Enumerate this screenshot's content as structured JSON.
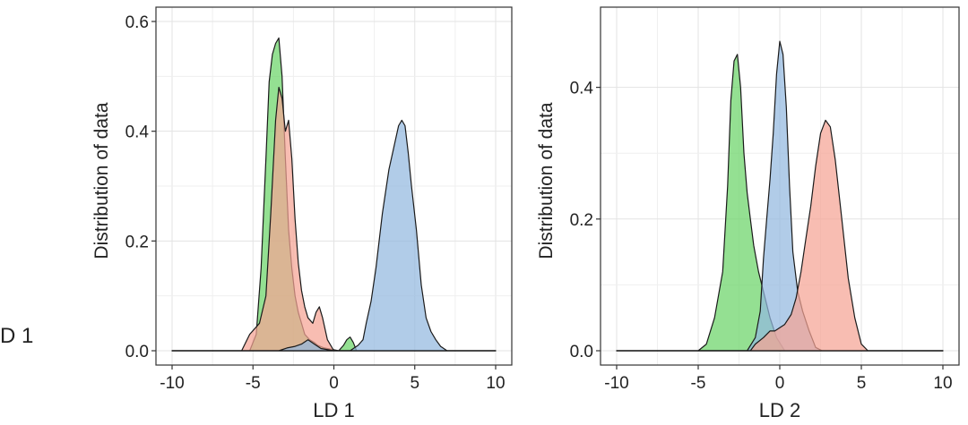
{
  "cut_label": "D 1",
  "colors": {
    "green": "#6bd468",
    "red": "#f5a494",
    "blue": "#93b9df",
    "outline": "#1a1a1a",
    "grid": "#e3e3e3"
  },
  "chart_data": [
    {
      "type": "area",
      "xlabel": "LD 1",
      "ylabel": "Distribution of data",
      "xlim": [
        -10,
        10
      ],
      "ylim": [
        0,
        0.6
      ],
      "xticks": [
        -10,
        -5,
        0,
        5,
        10
      ],
      "yticks": [
        0.0,
        0.2,
        0.4,
        0.6
      ],
      "xtick_labels": [
        "-10",
        "-5",
        "0",
        "5",
        "10"
      ],
      "ytick_labels": [
        "0.0",
        "0.2",
        "0.4",
        "0.6"
      ],
      "grid": true,
      "series": [
        {
          "color": "#6bd468",
          "x": [
            -10,
            -5.2,
            -4.8,
            -4.5,
            -4.2,
            -4.0,
            -3.8,
            -3.6,
            -3.4,
            -3.2,
            -3.0,
            -2.8,
            -2.6,
            -2.4,
            -2.2,
            -2.0,
            -1.8,
            -1.5,
            -1.2,
            -1.0,
            -0.6,
            0.3,
            0.6,
            0.8,
            1.0,
            1.2,
            1.4,
            10
          ],
          "y": [
            0,
            0,
            0.03,
            0.15,
            0.35,
            0.49,
            0.54,
            0.56,
            0.57,
            0.5,
            0.35,
            0.22,
            0.15,
            0.1,
            0.07,
            0.05,
            0.03,
            0.02,
            0.015,
            0.01,
            0.005,
            0,
            0.01,
            0.02,
            0.025,
            0.015,
            0,
            0
          ]
        },
        {
          "color": "#f5a494",
          "x": [
            -10,
            -5.7,
            -5.2,
            -4.6,
            -4.2,
            -3.9,
            -3.6,
            -3.4,
            -3.2,
            -3.0,
            -2.8,
            -2.6,
            -2.4,
            -2.2,
            -2.0,
            -1.8,
            -1.6,
            -1.3,
            -1.1,
            -0.9,
            -0.7,
            -0.4,
            0.0,
            10
          ],
          "y": [
            0,
            0,
            0.03,
            0.05,
            0.1,
            0.25,
            0.42,
            0.48,
            0.46,
            0.4,
            0.42,
            0.35,
            0.24,
            0.16,
            0.11,
            0.08,
            0.06,
            0.05,
            0.07,
            0.08,
            0.06,
            0.02,
            0,
            0
          ]
        },
        {
          "color": "#93b9df",
          "x": [
            -10,
            -3.4,
            -2.9,
            -2.4,
            -2.0,
            -1.6,
            -1.2,
            -0.8,
            0.0,
            1.0,
            1.5,
            1.8,
            2.0,
            2.3,
            2.6,
            3.0,
            3.4,
            3.7,
            4.0,
            4.2,
            4.4,
            4.6,
            4.8,
            5.1,
            5.4,
            5.7,
            6.0,
            6.3,
            6.6,
            7.0,
            10
          ],
          "y": [
            0,
            0,
            0.005,
            0.008,
            0.012,
            0.02,
            0.012,
            0.004,
            0,
            0,
            0.01,
            0.02,
            0.05,
            0.09,
            0.15,
            0.25,
            0.33,
            0.37,
            0.41,
            0.42,
            0.41,
            0.36,
            0.3,
            0.22,
            0.12,
            0.06,
            0.035,
            0.02,
            0.008,
            0,
            0
          ]
        }
      ]
    },
    {
      "type": "area",
      "xlabel": "LD 2",
      "ylabel": "Distribution of data",
      "xlim": [
        -10,
        10
      ],
      "ylim": [
        0,
        0.5
      ],
      "xticks": [
        -10,
        -5,
        0,
        5,
        10
      ],
      "yticks": [
        0.0,
        0.2,
        0.4
      ],
      "xtick_labels": [
        "-10",
        "-5",
        "0",
        "5",
        "10"
      ],
      "ytick_labels": [
        "0.0",
        "0.2",
        "0.4"
      ],
      "grid": true,
      "series": [
        {
          "color": "#6bd468",
          "x": [
            -10,
            -5.0,
            -4.5,
            -4.0,
            -3.5,
            -3.2,
            -3.0,
            -2.8,
            -2.6,
            -2.4,
            -2.2,
            -2.0,
            -1.8,
            -1.6,
            -1.3,
            -1.0,
            -0.6,
            -0.2,
            0.3,
            10
          ],
          "y": [
            0,
            0,
            0.01,
            0.05,
            0.12,
            0.25,
            0.38,
            0.44,
            0.45,
            0.4,
            0.3,
            0.24,
            0.2,
            0.16,
            0.12,
            0.09,
            0.05,
            0.02,
            0,
            0
          ]
        },
        {
          "color": "#93b9df",
          "x": [
            -10,
            -2.0,
            -1.5,
            -1.2,
            -1.0,
            -0.8,
            -0.6,
            -0.4,
            -0.2,
            0.0,
            0.2,
            0.4,
            0.6,
            0.8,
            1.1,
            1.4,
            1.8,
            2.2,
            2.6,
            10
          ],
          "y": [
            0,
            0,
            0.02,
            0.06,
            0.14,
            0.2,
            0.26,
            0.33,
            0.42,
            0.47,
            0.45,
            0.37,
            0.25,
            0.15,
            0.09,
            0.06,
            0.03,
            0.005,
            0,
            0
          ]
        },
        {
          "color": "#f5a494",
          "x": [
            -10,
            -1.8,
            -1.5,
            -1.0,
            -0.6,
            -0.3,
            0.0,
            0.3,
            0.7,
            1.0,
            1.3,
            1.6,
            1.9,
            2.2,
            2.5,
            2.8,
            3.1,
            3.4,
            3.8,
            4.2,
            4.6,
            5.0,
            5.4,
            10
          ],
          "y": [
            0,
            0,
            0.01,
            0.02,
            0.03,
            0.03,
            0.035,
            0.04,
            0.055,
            0.08,
            0.12,
            0.17,
            0.22,
            0.28,
            0.33,
            0.35,
            0.34,
            0.29,
            0.2,
            0.11,
            0.05,
            0.01,
            0,
            0
          ]
        }
      ]
    }
  ]
}
